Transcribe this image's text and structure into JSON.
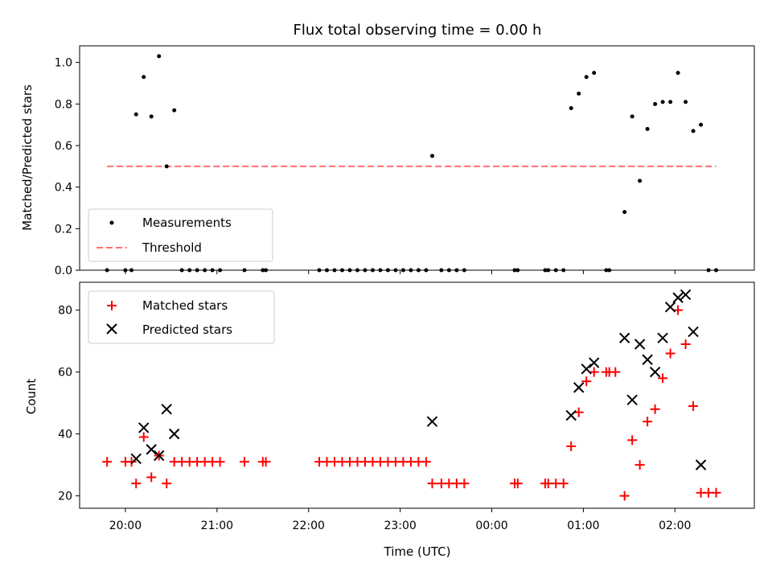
{
  "chart_data": [
    {
      "type": "scatter",
      "title": "Flux total observing time = 0.00 h",
      "xlabel": "",
      "ylabel": "Matched/Predicted stars",
      "ylim": [
        0,
        1.08
      ],
      "yticks": [
        "0.0",
        "0.2",
        "0.4",
        "0.6",
        "0.8",
        "1.0"
      ],
      "legend_position": "lower-left",
      "grid": false,
      "series": [
        {
          "name": "Measurements",
          "marker": "dot",
          "color": "#000000",
          "points": [
            [
              "19:48",
              0.0
            ],
            [
              "20:00",
              0.0
            ],
            [
              "20:04",
              0.0
            ],
            [
              "20:07",
              0.75
            ],
            [
              "20:12",
              0.93
            ],
            [
              "20:17",
              0.74
            ],
            [
              "20:22",
              1.03
            ],
            [
              "20:27",
              0.5
            ],
            [
              "20:32",
              0.77
            ],
            [
              "20:37",
              0.0
            ],
            [
              "20:42",
              0.0
            ],
            [
              "20:47",
              0.0
            ],
            [
              "20:52",
              0.0
            ],
            [
              "20:57",
              0.0
            ],
            [
              "21:02",
              0.0
            ],
            [
              "21:18",
              0.0
            ],
            [
              "21:30",
              0.0
            ],
            [
              "21:32",
              0.0
            ],
            [
              "22:07",
              0.0
            ],
            [
              "22:12",
              0.0
            ],
            [
              "22:17",
              0.0
            ],
            [
              "22:22",
              0.0
            ],
            [
              "22:27",
              0.0
            ],
            [
              "22:32",
              0.0
            ],
            [
              "22:37",
              0.0
            ],
            [
              "22:42",
              0.0
            ],
            [
              "22:47",
              0.0
            ],
            [
              "22:52",
              0.0
            ],
            [
              "22:57",
              0.0
            ],
            [
              "23:02",
              0.0
            ],
            [
              "23:07",
              0.0
            ],
            [
              "23:12",
              0.0
            ],
            [
              "23:17",
              0.0
            ],
            [
              "23:21",
              0.55
            ],
            [
              "23:27",
              0.0
            ],
            [
              "23:32",
              0.0
            ],
            [
              "23:37",
              0.0
            ],
            [
              "23:42",
              0.0
            ],
            [
              "00:15",
              0.0
            ],
            [
              "00:17",
              0.0
            ],
            [
              "00:35",
              0.0
            ],
            [
              "00:37",
              0.0
            ],
            [
              "00:42",
              0.0
            ],
            [
              "00:47",
              0.0
            ],
            [
              "00:52",
              0.78
            ],
            [
              "00:57",
              0.85
            ],
            [
              "01:02",
              0.93
            ],
            [
              "01:07",
              0.95
            ],
            [
              "01:15",
              0.0
            ],
            [
              "01:17",
              0.0
            ],
            [
              "01:27",
              0.28
            ],
            [
              "01:32",
              0.74
            ],
            [
              "01:37",
              0.43
            ],
            [
              "01:42",
              0.68
            ],
            [
              "01:47",
              0.8
            ],
            [
              "01:52",
              0.81
            ],
            [
              "01:57",
              0.81
            ],
            [
              "02:02",
              0.95
            ],
            [
              "02:07",
              0.81
            ],
            [
              "02:12",
              0.67
            ],
            [
              "02:17",
              0.7
            ],
            [
              "02:22",
              0.0
            ],
            [
              "02:27",
              0.0
            ]
          ]
        },
        {
          "name": "Threshold",
          "line": "dashed",
          "color": "#ff6f6f",
          "points": [
            [
              "19:48",
              0.5
            ],
            [
              "02:27",
              0.5
            ]
          ]
        }
      ]
    },
    {
      "type": "scatter",
      "title": "",
      "xlabel": "Time (UTC)",
      "ylabel": "Count",
      "ylim": [
        16,
        89
      ],
      "yticks": [
        "20",
        "40",
        "60",
        "80"
      ],
      "xticks": [
        "20:00",
        "21:00",
        "22:00",
        "23:00",
        "00:00",
        "01:00",
        "02:00"
      ],
      "x_range": [
        "19:30",
        "02:52"
      ],
      "legend_position": "upper-left",
      "grid": false,
      "series": [
        {
          "name": "Matched stars",
          "marker": "plus",
          "color": "#ff0000",
          "points": [
            [
              "19:48",
              31
            ],
            [
              "20:00",
              31
            ],
            [
              "20:04",
              31
            ],
            [
              "20:07",
              24
            ],
            [
              "20:12",
              39
            ],
            [
              "20:17",
              26
            ],
            [
              "20:22",
              33
            ],
            [
              "20:27",
              24
            ],
            [
              "20:32",
              31
            ],
            [
              "20:37",
              31
            ],
            [
              "20:42",
              31
            ],
            [
              "20:47",
              31
            ],
            [
              "20:52",
              31
            ],
            [
              "20:57",
              31
            ],
            [
              "21:02",
              31
            ],
            [
              "21:18",
              31
            ],
            [
              "21:30",
              31
            ],
            [
              "21:32",
              31
            ],
            [
              "22:07",
              31
            ],
            [
              "22:12",
              31
            ],
            [
              "22:17",
              31
            ],
            [
              "22:22",
              31
            ],
            [
              "22:27",
              31
            ],
            [
              "22:32",
              31
            ],
            [
              "22:37",
              31
            ],
            [
              "22:42",
              31
            ],
            [
              "22:47",
              31
            ],
            [
              "22:52",
              31
            ],
            [
              "22:57",
              31
            ],
            [
              "23:02",
              31
            ],
            [
              "23:07",
              31
            ],
            [
              "23:12",
              31
            ],
            [
              "23:17",
              31
            ],
            [
              "23:21",
              24
            ],
            [
              "23:27",
              24
            ],
            [
              "23:32",
              24
            ],
            [
              "23:37",
              24
            ],
            [
              "23:42",
              24
            ],
            [
              "00:15",
              24
            ],
            [
              "00:17",
              24
            ],
            [
              "00:35",
              24
            ],
            [
              "00:37",
              24
            ],
            [
              "00:42",
              24
            ],
            [
              "00:47",
              24
            ],
            [
              "00:52",
              36
            ],
            [
              "00:57",
              47
            ],
            [
              "01:02",
              57
            ],
            [
              "01:07",
              60
            ],
            [
              "01:15",
              60
            ],
            [
              "01:17",
              60
            ],
            [
              "01:21",
              60
            ],
            [
              "01:27",
              20
            ],
            [
              "01:32",
              38
            ],
            [
              "01:37",
              30
            ],
            [
              "01:42",
              44
            ],
            [
              "01:47",
              48
            ],
            [
              "01:52",
              58
            ],
            [
              "01:57",
              66
            ],
            [
              "02:02",
              80
            ],
            [
              "02:07",
              69
            ],
            [
              "02:12",
              49
            ],
            [
              "02:17",
              21
            ],
            [
              "02:22",
              21
            ],
            [
              "02:27",
              21
            ]
          ]
        },
        {
          "name": "Predicted stars",
          "marker": "x",
          "color": "#000000",
          "points": [
            [
              "20:07",
              32
            ],
            [
              "20:12",
              42
            ],
            [
              "20:17",
              35
            ],
            [
              "20:22",
              33
            ],
            [
              "20:27",
              48
            ],
            [
              "20:32",
              40
            ],
            [
              "23:21",
              44
            ],
            [
              "00:52",
              46
            ],
            [
              "00:57",
              55
            ],
            [
              "01:02",
              61
            ],
            [
              "01:07",
              63
            ],
            [
              "01:27",
              71
            ],
            [
              "01:32",
              51
            ],
            [
              "01:37",
              69
            ],
            [
              "01:42",
              64
            ],
            [
              "01:47",
              60
            ],
            [
              "01:52",
              71
            ],
            [
              "01:57",
              81
            ],
            [
              "02:02",
              84
            ],
            [
              "02:07",
              85
            ],
            [
              "02:12",
              73
            ],
            [
              "02:17",
              30
            ]
          ]
        }
      ]
    }
  ]
}
